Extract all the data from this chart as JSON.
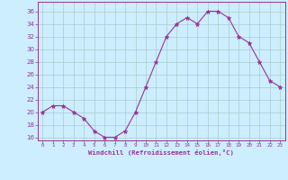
{
  "x": [
    0,
    1,
    2,
    3,
    4,
    5,
    6,
    7,
    8,
    9,
    10,
    11,
    12,
    13,
    14,
    15,
    16,
    17,
    18,
    19,
    20,
    21,
    22,
    23
  ],
  "y": [
    20,
    21,
    21,
    20,
    19,
    17,
    16,
    16,
    17,
    20,
    24,
    28,
    32,
    34,
    35,
    34,
    36,
    36,
    35,
    32,
    31,
    28,
    25,
    24
  ],
  "line_color": "#993399",
  "marker": "*",
  "marker_color": "#993399",
  "bg_color": "#cceeff",
  "grid_color": "#aacccc",
  "xlabel": "Windchill (Refroidissement éolien,°C)",
  "ylim": [
    15.5,
    37.5
  ],
  "yticks": [
    16,
    18,
    20,
    22,
    24,
    26,
    28,
    30,
    32,
    34,
    36
  ],
  "xlim": [
    -0.5,
    23.5
  ],
  "xticks": [
    0,
    1,
    2,
    3,
    4,
    5,
    6,
    7,
    8,
    9,
    10,
    11,
    12,
    13,
    14,
    15,
    16,
    17,
    18,
    19,
    20,
    21,
    22,
    23
  ],
  "tick_color": "#993399",
  "spine_color": "#993399"
}
